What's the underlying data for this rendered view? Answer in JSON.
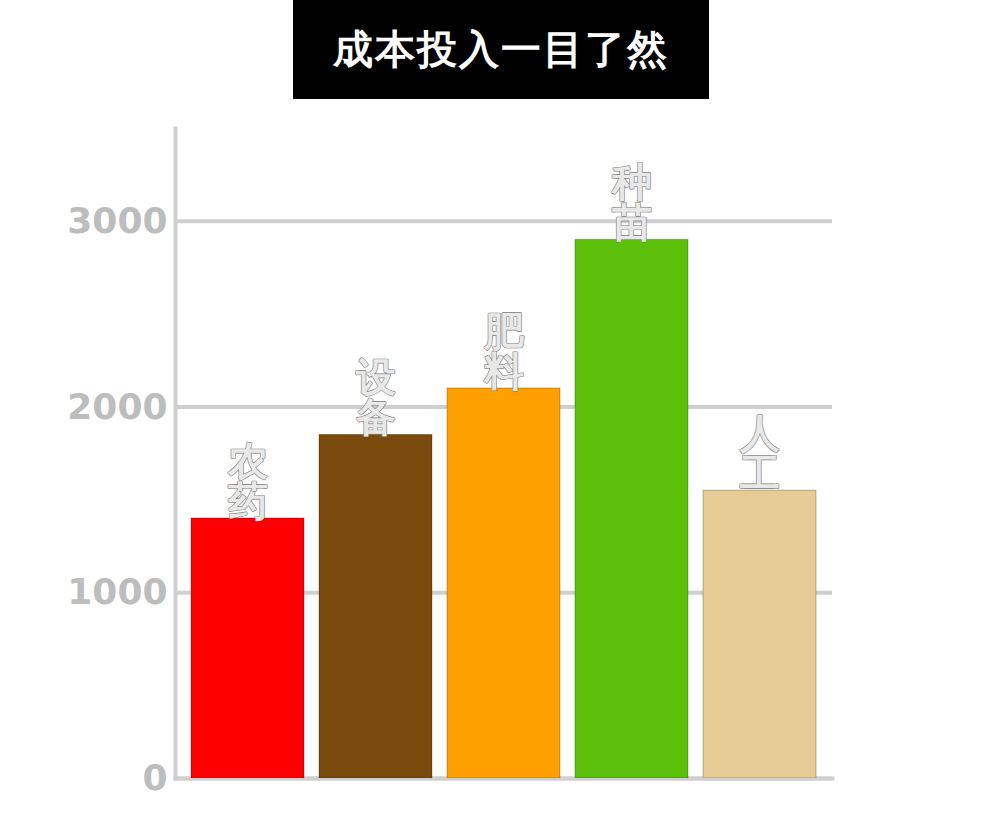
{
  "chart_data": {
    "type": "bar",
    "title": "成本投入一目了然",
    "categories": [
      "农药",
      "设备",
      "肥料",
      "种苗",
      "人工"
    ],
    "values": [
      1400,
      1850,
      2100,
      2900,
      1550
    ],
    "colors": [
      "#ff0000",
      "#7a4a0c",
      "#ffa000",
      "#5cbf0a",
      "#e6cc94"
    ],
    "ylim": [
      0,
      3500
    ],
    "yticks": [
      0,
      1000,
      2000,
      3000
    ],
    "grid": true,
    "tick_labels": "y",
    "data_labels": false
  }
}
